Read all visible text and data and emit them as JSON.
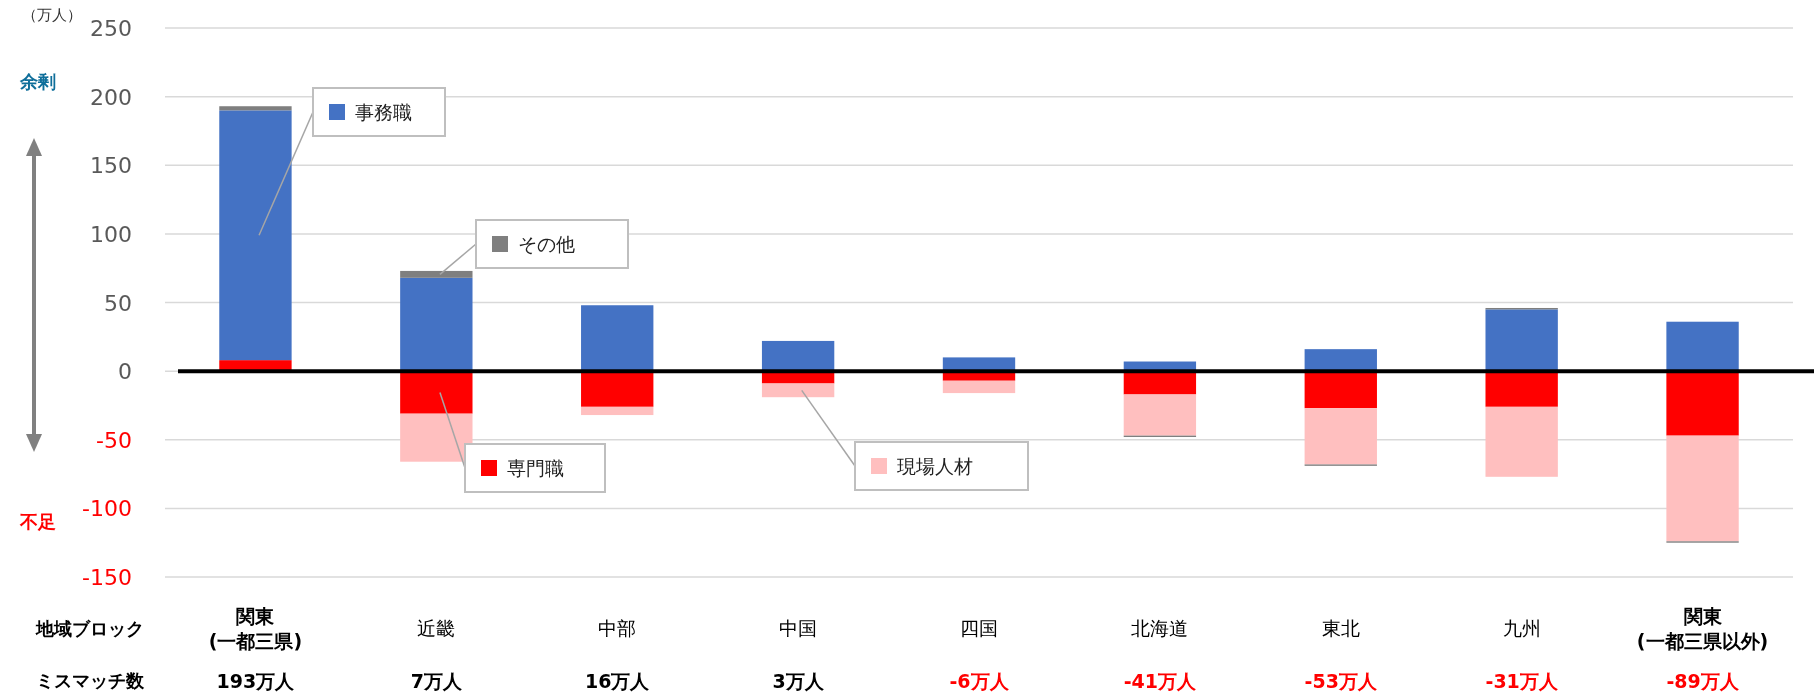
{
  "chart_data": {
    "type": "bar",
    "stacked": true,
    "ylabel": "（万人）",
    "xlabel": "地域ブロック",
    "categories": [
      "関東\n(一都三県)",
      "近畿",
      "中部",
      "中国",
      "四国",
      "北海道",
      "東北",
      "九州",
      "関東\n(一都三県以外)"
    ],
    "series": [
      {
        "name": "専門職",
        "color": "#ff0000",
        "values": [
          8,
          -31,
          -26,
          -9,
          -7,
          -17,
          -27,
          -26,
          -47
        ]
      },
      {
        "name": "事務職",
        "color": "#4472c4",
        "values": [
          182,
          68,
          48,
          22,
          10,
          7,
          16,
          45,
          36
        ]
      },
      {
        "name": "現場人材",
        "color": "#ffbfbf",
        "values": [
          0,
          -35,
          -6,
          -10,
          -9,
          -30,
          -41,
          -51,
          -77
        ]
      },
      {
        "name": "その他",
        "color": "#7f7f7f",
        "values": [
          3,
          5,
          0,
          0,
          0,
          -1,
          -1,
          1,
          -1
        ]
      }
    ],
    "annotations": [
      "余剰",
      "不足",
      "ミスマッチ数",
      "193万人",
      "7万人",
      "16万人",
      "3万人",
      "-6万人",
      "-41万人",
      "-53万人",
      "-31万人",
      "-89万人"
    ],
    "ylim": [
      -150,
      250
    ],
    "yticks": [
      -150,
      -100,
      -50,
      0,
      50,
      100,
      150,
      200,
      250
    ],
    "grid": "y",
    "legend": "top left"
  }
}
